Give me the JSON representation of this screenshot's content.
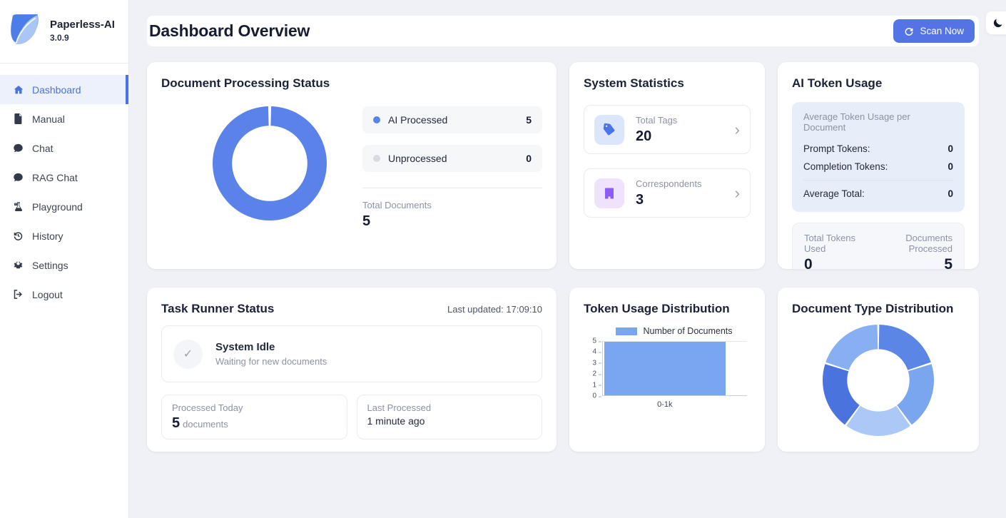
{
  "app": {
    "name": "Paperless-AI",
    "version": "3.0.9"
  },
  "sidebar": {
    "items": [
      {
        "label": "Dashboard",
        "icon": "home-icon",
        "active": true
      },
      {
        "label": "Manual",
        "icon": "document-icon",
        "active": false
      },
      {
        "label": "Chat",
        "icon": "chat-bubble-icon",
        "active": false
      },
      {
        "label": "RAG Chat",
        "icon": "chat-bubble-icon",
        "active": false
      },
      {
        "label": "Playground",
        "icon": "flask-icon",
        "active": false
      },
      {
        "label": "History",
        "icon": "history-icon",
        "active": false
      },
      {
        "label": "Settings",
        "icon": "gear-icon",
        "active": false
      },
      {
        "label": "Logout",
        "icon": "logout-icon",
        "active": false
      }
    ]
  },
  "header": {
    "title": "Dashboard Overview",
    "scan_button_label": "Scan Now",
    "theme_toggle_icon": "moon-icon"
  },
  "colors": {
    "accent_blue": "#4a72e0",
    "button_blue": "#5474e6",
    "donut_processed": "#5b82e8",
    "donut_unprocessed_dot": "#d8dce2",
    "bar_blue": "#7aa5f0"
  },
  "cards": {
    "doc_processing": {
      "title": "Document Processing Status",
      "legend": [
        {
          "label": "AI Processed",
          "value": "5",
          "dot_color": "#5b82e8"
        },
        {
          "label": "Unprocessed",
          "value": "0",
          "dot_color": "#d8dce2"
        }
      ],
      "total_label": "Total Documents",
      "total_value": "5"
    },
    "system_stats": {
      "title": "System Statistics",
      "items": [
        {
          "label": "Total Tags",
          "value": "20",
          "icon": "tag-icon"
        },
        {
          "label": "Correspondents",
          "value": "3",
          "icon": "building-icon"
        }
      ]
    },
    "token_usage": {
      "title": "AI Token Usage",
      "avg_heading": "Average Token Usage per Document",
      "rows": [
        {
          "label": "Prompt Tokens:",
          "value": "0"
        },
        {
          "label": "Completion Tokens:",
          "value": "0"
        }
      ],
      "total_row": {
        "label": "Average Total:",
        "value": "0"
      },
      "totals_box": {
        "left_label": "Total Tokens Used",
        "left_value": "0",
        "right_label": "Documents Processed",
        "right_value": "5"
      }
    },
    "task_runner": {
      "title": "Task Runner Status",
      "last_updated": "Last updated: 17:09:10",
      "status_title": "System Idle",
      "status_subtitle": "Waiting for new documents",
      "processed_today": {
        "label": "Processed Today",
        "value": "5",
        "unit": "documents"
      },
      "last_processed": {
        "label": "Last Processed",
        "value": "1 minute ago"
      }
    },
    "token_distribution": {
      "title": "Token Usage Distribution"
    },
    "doc_type_distribution": {
      "title": "Document Type Distribution"
    }
  },
  "chart_data": [
    {
      "type": "donut",
      "title": "Document Processing Status",
      "labels": [
        "AI Processed",
        "Unprocessed"
      ],
      "values": [
        5,
        0
      ],
      "colors": [
        "#5b82e8",
        "#d8dce2"
      ],
      "gap_deg": 3,
      "inner_ratio": 0.66,
      "legend_position": "right"
    },
    {
      "type": "bar",
      "title": "Token Usage Distribution",
      "categories": [
        "0-1k"
      ],
      "series": [
        {
          "name": "Number of Documents",
          "values": [
            5
          ],
          "color": "#7aa5f0"
        }
      ],
      "xlabel": "",
      "ylabel": "",
      "ylim": [
        0,
        5
      ],
      "ytick_step": 1,
      "legend_position": "top",
      "grid": "top-gridline-only",
      "bar_width_ratio": 0.84
    },
    {
      "type": "donut",
      "title": "Document Type Distribution",
      "labels": [
        "",
        "",
        "",
        "",
        ""
      ],
      "values": [
        1,
        1,
        1,
        1,
        1
      ],
      "colors": [
        "#5b86e5",
        "#7aa5ef",
        "#abc8f7",
        "#4a73de",
        "#88aff1"
      ],
      "gap_deg": 2,
      "inner_ratio": 0.56,
      "legend_position": "none"
    }
  ]
}
